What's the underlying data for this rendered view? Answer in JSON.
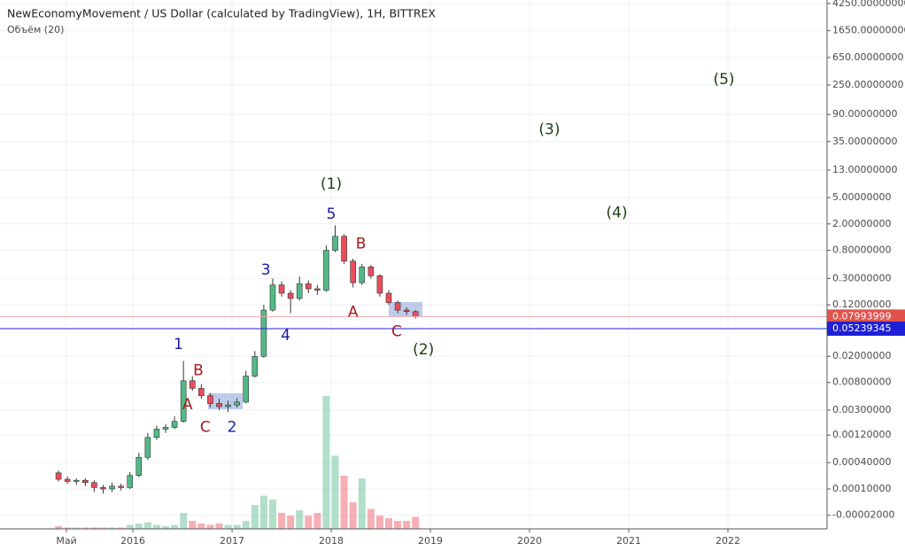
{
  "chart_data": {
    "type": "candlestick",
    "title": "NewEconomyMovement / US Dollar (calculated by TradingView), 1H, BITTREX",
    "subtitle": "Объём (20)",
    "log_scale": true,
    "grid": true,
    "up_color": "#53b987",
    "down_color": "#eb4d5c",
    "xlim": [
      2014.66,
      2023.0
    ],
    "ylim": [
      -5e-05,
      4800
    ],
    "xticks": [
      {
        "value": 2015.33,
        "label": "Май"
      },
      2016,
      2017,
      2018,
      2019,
      2020,
      2021,
      2022
    ],
    "yticks": [
      {
        "value": 4250,
        "label": "4250.00000000"
      },
      {
        "value": 1650,
        "label": "1650.00000000"
      },
      {
        "value": 650,
        "label": "650.00000000"
      },
      {
        "value": 250,
        "label": "250.00000000"
      },
      {
        "value": 90,
        "label": "90.00000000"
      },
      {
        "value": 35,
        "label": "35.00000000"
      },
      {
        "value": 13,
        "label": "13.00000000"
      },
      {
        "value": 5,
        "label": "5.00000000"
      },
      {
        "value": 2,
        "label": "2.00000000"
      },
      {
        "value": 0.8,
        "label": "0.80000000"
      },
      {
        "value": 0.3,
        "label": "0.30000000"
      },
      {
        "value": 0.12,
        "label": "0.12000000"
      },
      {
        "value": 0.02,
        "label": "0.02000000"
      },
      {
        "value": 0.008,
        "label": "0.00800000"
      },
      {
        "value": 0.003,
        "label": "0.00300000"
      },
      {
        "value": 0.0012,
        "label": "0.00120000"
      },
      {
        "value": 0.0004,
        "label": "0.00040000"
      },
      {
        "value": 0.0001,
        "label": "0.00010000"
      },
      {
        "value": -2e-05,
        "label": "-0.00002000"
      }
    ],
    "x": [
      2015.25,
      2015.34,
      2015.43,
      2015.52,
      2015.61,
      2015.7,
      2015.79,
      2015.88,
      2015.97,
      2016.06,
      2016.15,
      2016.24,
      2016.33,
      2016.42,
      2016.51,
      2016.6,
      2016.69,
      2016.78,
      2016.87,
      2016.96,
      2017.05,
      2017.14,
      2017.23,
      2017.32,
      2017.41,
      2017.5,
      2017.59,
      2017.68,
      2017.77,
      2017.86,
      2017.95,
      2018.04,
      2018.13,
      2018.22,
      2018.31,
      2018.4,
      2018.49,
      2018.58,
      2018.67,
      2018.76,
      2018.85
    ],
    "open": [
      0.00025,
      0.00018,
      0.00016,
      0.00017,
      0.00015,
      0.00011,
      0.0001,
      0.00012,
      0.00011,
      0.00022,
      0.0005,
      0.0011,
      0.0015,
      0.0016,
      0.002,
      0.0085,
      0.0065,
      0.005,
      0.0038,
      0.0034,
      0.0036,
      0.004,
      0.01,
      0.02,
      0.1,
      0.24,
      0.18,
      0.15,
      0.25,
      0.21,
      0.2,
      0.8,
      1.3,
      0.55,
      0.26,
      0.45,
      0.33,
      0.18,
      0.13,
      0.1,
      0.095
    ],
    "high": [
      0.00028,
      0.00021,
      0.00019,
      0.00019,
      0.00017,
      0.00013,
      0.00015,
      0.00014,
      0.00026,
      0.0006,
      0.0013,
      0.0017,
      0.0018,
      0.0024,
      0.017,
      0.01,
      0.0075,
      0.0055,
      0.0045,
      0.0042,
      0.0046,
      0.012,
      0.024,
      0.12,
      0.3,
      0.27,
      0.2,
      0.32,
      0.28,
      0.24,
      0.95,
      1.9,
      1.4,
      0.6,
      0.5,
      0.48,
      0.35,
      0.2,
      0.14,
      0.11,
      0.1
    ],
    "low": [
      0.00016,
      0.00014,
      0.00013,
      0.00012,
      8e-05,
      7e-05,
      8e-05,
      9e-05,
      0.0001,
      0.0002,
      0.00045,
      0.001,
      0.0013,
      0.0015,
      0.0019,
      0.006,
      0.0045,
      0.0033,
      0.003,
      0.0028,
      0.0033,
      0.0038,
      0.0095,
      0.019,
      0.095,
      0.16,
      0.09,
      0.14,
      0.18,
      0.17,
      0.19,
      0.75,
      0.5,
      0.22,
      0.24,
      0.3,
      0.16,
      0.12,
      0.09,
      0.085,
      0.075
    ],
    "close": [
      0.00018,
      0.00016,
      0.00017,
      0.00015,
      0.00011,
      0.0001,
      0.00012,
      0.00011,
      0.00022,
      0.0005,
      0.0011,
      0.0015,
      0.0016,
      0.002,
      0.0085,
      0.0065,
      0.005,
      0.0038,
      0.0034,
      0.0036,
      0.004,
      0.01,
      0.02,
      0.1,
      0.24,
      0.18,
      0.15,
      0.25,
      0.21,
      0.2,
      0.8,
      1.3,
      0.55,
      0.26,
      0.45,
      0.33,
      0.18,
      0.13,
      0.1,
      0.095,
      0.08
    ],
    "volume": [
      2,
      1,
      1,
      1,
      1,
      1,
      1,
      1,
      3,
      4,
      5,
      3,
      2,
      3,
      12,
      6,
      4,
      3,
      4,
      3,
      3,
      6,
      18,
      25,
      22,
      12,
      10,
      14,
      10,
      12,
      100,
      55,
      40,
      20,
      38,
      15,
      10,
      8,
      6,
      6,
      9
    ],
    "hlines": [
      {
        "value": 0.07993999,
        "color": "#f4a8a8",
        "label_color": "#e0524d"
      },
      {
        "value": 0.05239345,
        "color": "#1f1fd6",
        "label_color": "#1f1fd6"
      }
    ],
    "annotations": [
      {
        "text": "(1)",
        "x": 2018.0,
        "y": 8.0,
        "color": "#1e3d14"
      },
      {
        "text": "(2)",
        "x": 2018.93,
        "y": 0.025,
        "color": "#1e3d14"
      },
      {
        "text": "(3)",
        "x": 2020.2,
        "y": 53,
        "color": "#1e3d14"
      },
      {
        "text": "(4)",
        "x": 2020.88,
        "y": 2.9,
        "color": "#1e3d14"
      },
      {
        "text": "(5)",
        "x": 2021.96,
        "y": 300,
        "color": "#1e3d14"
      },
      {
        "text": "1",
        "x": 2016.46,
        "y": 0.03,
        "color": "#1a1aa8"
      },
      {
        "text": "2",
        "x": 2017.0,
        "y": 0.0016,
        "color": "#1a1aa8"
      },
      {
        "text": "3",
        "x": 2017.34,
        "y": 0.4,
        "color": "#1a1aa8"
      },
      {
        "text": "4",
        "x": 2017.54,
        "y": 0.041,
        "color": "#1a1aa8"
      },
      {
        "text": "5",
        "x": 2018.0,
        "y": 2.8,
        "color": "#1a1aa8"
      },
      {
        "text": "A",
        "x": 2016.55,
        "y": 0.0036,
        "color": "#a51a1a"
      },
      {
        "text": "B",
        "x": 2016.66,
        "y": 0.012,
        "color": "#a51a1a"
      },
      {
        "text": "C",
        "x": 2016.73,
        "y": 0.0016,
        "color": "#a51a1a"
      },
      {
        "text": "A",
        "x": 2018.22,
        "y": 0.093,
        "color": "#a51a1a"
      },
      {
        "text": "B",
        "x": 2018.3,
        "y": 1.0,
        "color": "#a51a1a"
      },
      {
        "text": "C",
        "x": 2018.66,
        "y": 0.047,
        "color": "#a51a1a"
      }
    ]
  }
}
